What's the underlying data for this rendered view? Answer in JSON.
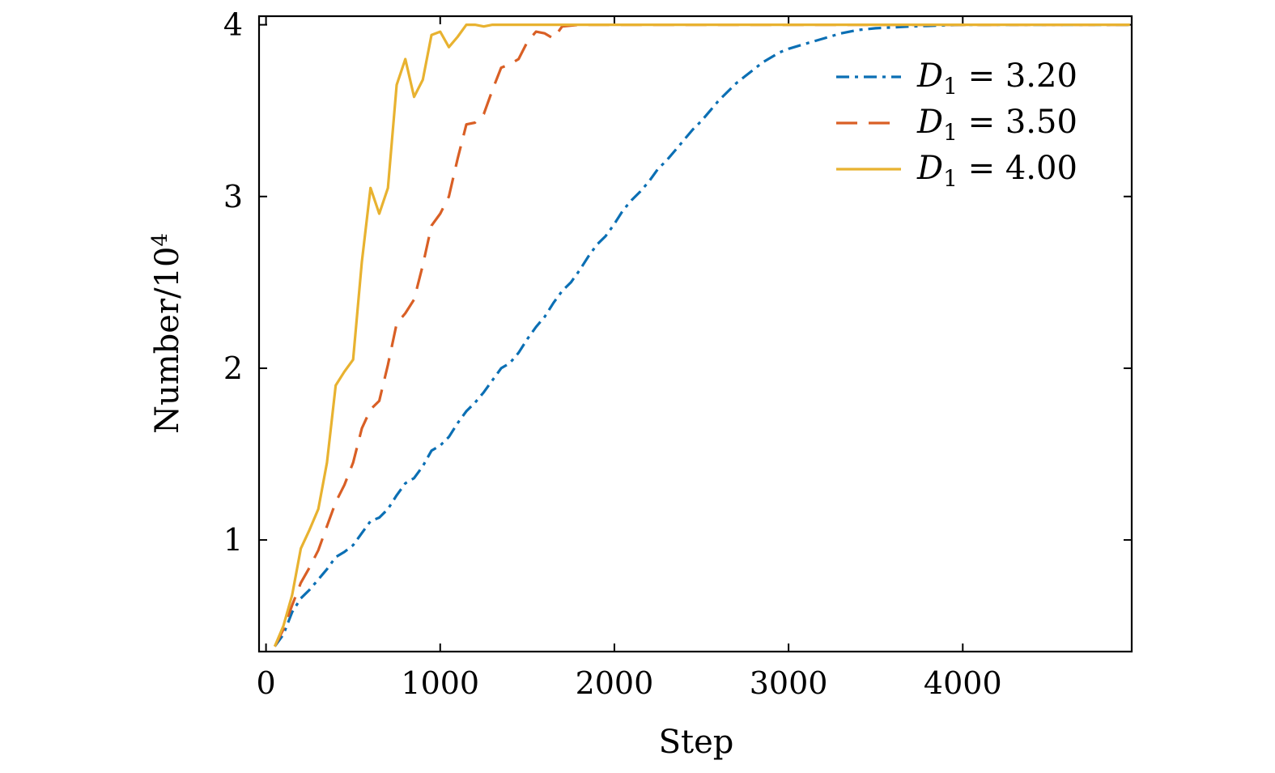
{
  "chart_data": {
    "type": "line",
    "title": "",
    "xlabel": "Step",
    "ylabel": "Number/10",
    "ylabel_sup": "4",
    "xlim": [
      -40,
      4970
    ],
    "ylim": [
      0.35,
      4.05
    ],
    "xticks": [
      0,
      1000,
      2000,
      3000,
      4000
    ],
    "xtick_labels": [
      "0",
      "1000",
      "2000",
      "3000",
      "4000"
    ],
    "yticks": [
      1,
      2,
      3,
      4
    ],
    "ytick_labels": [
      "1",
      "2",
      "3",
      "4"
    ],
    "grid": false,
    "legend_position": "top-right",
    "series": [
      {
        "name_var": "D",
        "name_sub": "1",
        "name_rest": " = 3.20",
        "color": "#0b6fb4",
        "dash": "dashdot",
        "points": [
          [
            50,
            0.38
          ],
          [
            100,
            0.45
          ],
          [
            150,
            0.58
          ],
          [
            200,
            0.66
          ],
          [
            250,
            0.71
          ],
          [
            300,
            0.77
          ],
          [
            350,
            0.83
          ],
          [
            400,
            0.9
          ],
          [
            450,
            0.93
          ],
          [
            500,
            0.97
          ],
          [
            550,
            1.04
          ],
          [
            600,
            1.11
          ],
          [
            650,
            1.13
          ],
          [
            700,
            1.18
          ],
          [
            750,
            1.26
          ],
          [
            800,
            1.33
          ],
          [
            850,
            1.36
          ],
          [
            900,
            1.43
          ],
          [
            950,
            1.52
          ],
          [
            1000,
            1.55
          ],
          [
            1050,
            1.6
          ],
          [
            1100,
            1.68
          ],
          [
            1150,
            1.75
          ],
          [
            1200,
            1.8
          ],
          [
            1250,
            1.86
          ],
          [
            1300,
            1.93
          ],
          [
            1350,
            2.0
          ],
          [
            1400,
            2.03
          ],
          [
            1450,
            2.09
          ],
          [
            1500,
            2.17
          ],
          [
            1550,
            2.24
          ],
          [
            1600,
            2.3
          ],
          [
            1650,
            2.38
          ],
          [
            1700,
            2.45
          ],
          [
            1750,
            2.5
          ],
          [
            1800,
            2.57
          ],
          [
            1850,
            2.65
          ],
          [
            1900,
            2.72
          ],
          [
            1950,
            2.77
          ],
          [
            2000,
            2.84
          ],
          [
            2050,
            2.92
          ],
          [
            2100,
            2.98
          ],
          [
            2150,
            3.03
          ],
          [
            2200,
            3.09
          ],
          [
            2250,
            3.16
          ],
          [
            2300,
            3.21
          ],
          [
            2350,
            3.27
          ],
          [
            2400,
            3.33
          ],
          [
            2450,
            3.39
          ],
          [
            2500,
            3.44
          ],
          [
            2550,
            3.5
          ],
          [
            2600,
            3.56
          ],
          [
            2650,
            3.61
          ],
          [
            2700,
            3.66
          ],
          [
            2750,
            3.7
          ],
          [
            2800,
            3.74
          ],
          [
            2850,
            3.78
          ],
          [
            2900,
            3.81
          ],
          [
            2950,
            3.84
          ],
          [
            3000,
            3.86
          ],
          [
            3100,
            3.89
          ],
          [
            3200,
            3.92
          ],
          [
            3300,
            3.95
          ],
          [
            3400,
            3.97
          ],
          [
            3500,
            3.98
          ],
          [
            3700,
            3.99
          ],
          [
            4000,
            4.0
          ],
          [
            4960,
            4.0
          ]
        ]
      },
      {
        "name_var": "D",
        "name_sub": "1",
        "name_rest": " = 3.50",
        "color": "#d95f25",
        "dash": "dashed",
        "points": [
          [
            50,
            0.38
          ],
          [
            100,
            0.48
          ],
          [
            150,
            0.62
          ],
          [
            200,
            0.75
          ],
          [
            250,
            0.84
          ],
          [
            300,
            0.94
          ],
          [
            350,
            1.08
          ],
          [
            400,
            1.22
          ],
          [
            450,
            1.32
          ],
          [
            500,
            1.45
          ],
          [
            550,
            1.65
          ],
          [
            600,
            1.76
          ],
          [
            650,
            1.81
          ],
          [
            700,
            2.02
          ],
          [
            750,
            2.26
          ],
          [
            800,
            2.32
          ],
          [
            850,
            2.4
          ],
          [
            900,
            2.6
          ],
          [
            950,
            2.83
          ],
          [
            1000,
            2.9
          ],
          [
            1050,
            3.0
          ],
          [
            1100,
            3.22
          ],
          [
            1150,
            3.42
          ],
          [
            1200,
            3.43
          ],
          [
            1250,
            3.48
          ],
          [
            1300,
            3.62
          ],
          [
            1350,
            3.75
          ],
          [
            1400,
            3.77
          ],
          [
            1450,
            3.8
          ],
          [
            1500,
            3.9
          ],
          [
            1550,
            3.96
          ],
          [
            1600,
            3.95
          ],
          [
            1650,
            3.92
          ],
          [
            1700,
            3.99
          ],
          [
            1800,
            4.0
          ],
          [
            1900,
            4.0
          ],
          [
            4960,
            4.0
          ]
        ]
      },
      {
        "name_var": "D",
        "name_sub": "1",
        "name_rest": " = 4.00",
        "color": "#e8b230",
        "dash": "solid",
        "points": [
          [
            50,
            0.38
          ],
          [
            100,
            0.5
          ],
          [
            150,
            0.68
          ],
          [
            200,
            0.95
          ],
          [
            250,
            1.06
          ],
          [
            300,
            1.18
          ],
          [
            350,
            1.45
          ],
          [
            400,
            1.9
          ],
          [
            450,
            1.98
          ],
          [
            500,
            2.05
          ],
          [
            550,
            2.62
          ],
          [
            600,
            3.05
          ],
          [
            650,
            2.9
          ],
          [
            700,
            3.05
          ],
          [
            750,
            3.65
          ],
          [
            800,
            3.8
          ],
          [
            850,
            3.58
          ],
          [
            900,
            3.68
          ],
          [
            950,
            3.94
          ],
          [
            1000,
            3.96
          ],
          [
            1050,
            3.87
          ],
          [
            1100,
            3.93
          ],
          [
            1150,
            4.0
          ],
          [
            1200,
            4.0
          ],
          [
            1250,
            3.99
          ],
          [
            1300,
            4.0
          ],
          [
            1400,
            4.0
          ],
          [
            4960,
            4.0
          ]
        ]
      }
    ]
  }
}
